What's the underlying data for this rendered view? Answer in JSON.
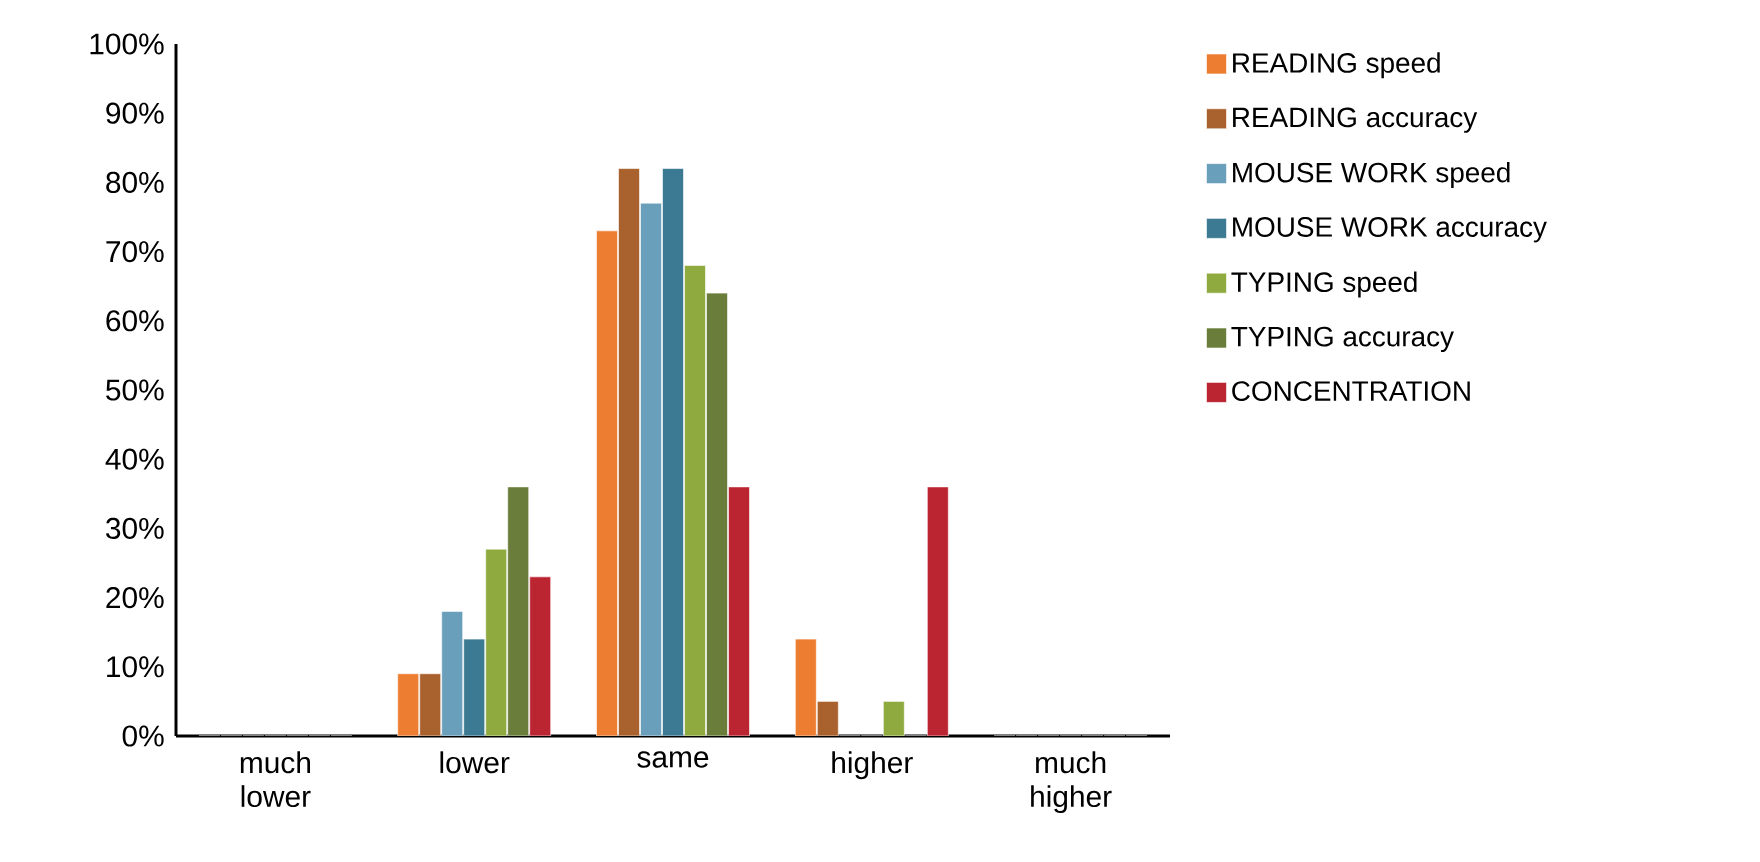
{
  "chart_data": {
    "type": "bar",
    "categories": [
      "much lower",
      "lower",
      "same",
      "higher",
      "much higher"
    ],
    "series": [
      {
        "name": "READING speed",
        "color": "#ed7d31",
        "values": [
          0,
          9,
          73,
          14,
          0
        ]
      },
      {
        "name": "READING accuracy",
        "color": "#a9622e",
        "values": [
          0,
          9,
          82,
          5,
          0
        ]
      },
      {
        "name": "MOUSE WORK speed",
        "color": "#6a9fbb",
        "values": [
          0,
          18,
          77,
          0,
          0
        ]
      },
      {
        "name": "MOUSE WORK accuracy",
        "color": "#3b7a92",
        "values": [
          0,
          14,
          82,
          0,
          0
        ]
      },
      {
        "name": "TYPING speed",
        "color": "#8faa3f",
        "values": [
          0,
          27,
          68,
          5,
          0
        ]
      },
      {
        "name": "TYPING accuracy",
        "color": "#6a7d3a",
        "values": [
          0,
          36,
          64,
          0,
          0
        ]
      },
      {
        "name": "CONCENTRATION",
        "color": "#bb2531",
        "values": [
          0,
          23,
          36,
          36,
          0
        ]
      }
    ],
    "ylim": [
      0,
      100
    ],
    "yticks": [
      {
        "value": 0,
        "label": "0%"
      },
      {
        "value": 10,
        "label": "10%"
      },
      {
        "value": 20,
        "label": "20%"
      },
      {
        "value": 30,
        "label": "30%"
      },
      {
        "value": 40,
        "label": "40%"
      },
      {
        "value": 50,
        "label": "50%"
      },
      {
        "value": 60,
        "label": "60%"
      },
      {
        "value": 70,
        "label": "70%"
      },
      {
        "value": 80,
        "label": "80%"
      },
      {
        "value": 90,
        "label": "90%"
      },
      {
        "value": 100,
        "label": "100%"
      }
    ],
    "grid": false,
    "legend": "right"
  }
}
